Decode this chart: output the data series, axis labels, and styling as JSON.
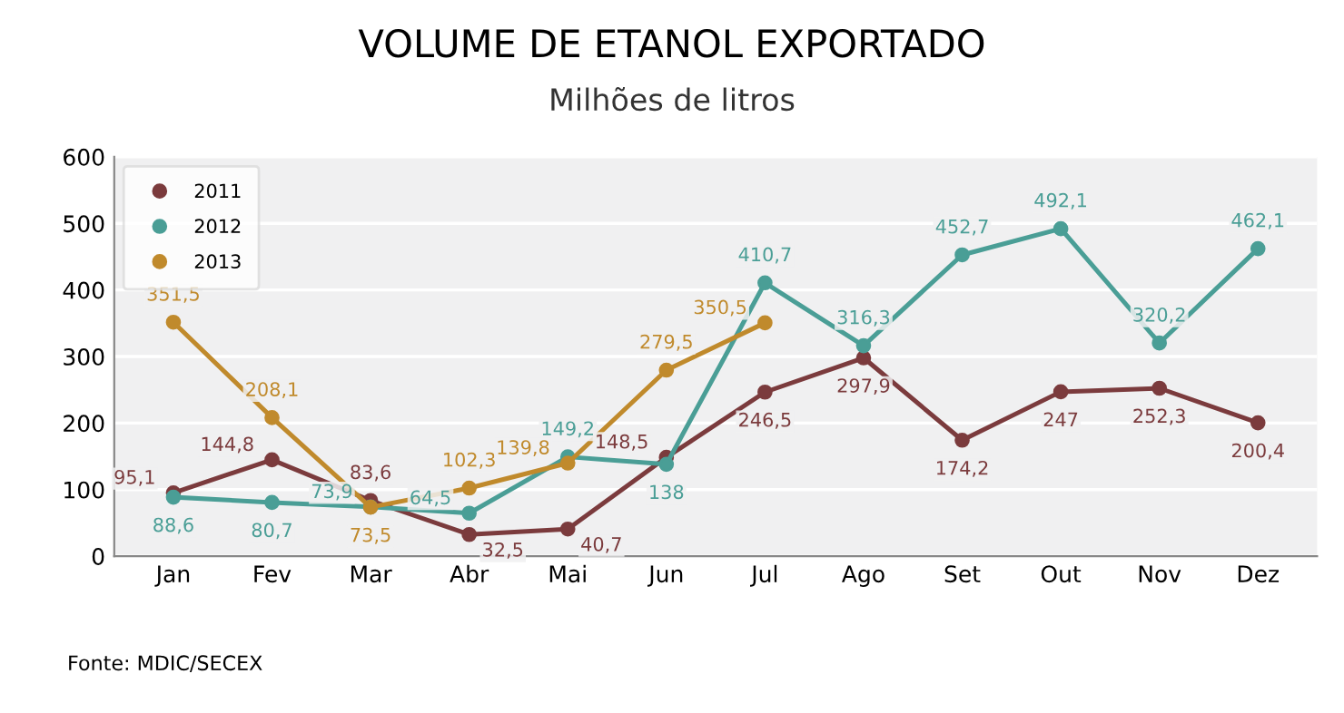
{
  "chart_data": {
    "type": "line",
    "title": "VOLUME DE ETANOL EXPORTADO",
    "subtitle": "Milhões de litros",
    "categories": [
      "Jan",
      "Fev",
      "Mar",
      "Abr",
      "Mai",
      "Jun",
      "Jul",
      "Ago",
      "Set",
      "Out",
      "Nov",
      "Dez"
    ],
    "series": [
      {
        "name": "2011",
        "color": "#7b3b3d",
        "values": [
          95.1,
          144.8,
          83.6,
          32.5,
          40.7,
          148.5,
          246.5,
          297.9,
          174.2,
          247,
          252.3,
          200.4
        ],
        "value_labels": [
          "95,1",
          "144,8",
          "83,6",
          "32,5",
          "40,7",
          "148,5",
          "246,5",
          "297,9",
          "174,2",
          "247",
          "252,3",
          "200,4"
        ]
      },
      {
        "name": "2012",
        "color": "#4a9e96",
        "values": [
          88.6,
          80.7,
          73.9,
          64.5,
          149.2,
          138,
          410.7,
          316.3,
          452.7,
          492.1,
          320.2,
          462.1
        ],
        "value_labels": [
          "88,6",
          "80,7",
          "73,9",
          "64,5",
          "149,2",
          "138",
          "410,7",
          "316,3",
          "452,7",
          "492,1",
          "320,2",
          "462,1"
        ]
      },
      {
        "name": "2013",
        "color": "#c08a2c",
        "values": [
          351.5,
          208.1,
          73.5,
          102.3,
          139.8,
          279.5,
          350.5,
          null,
          null,
          null,
          null,
          null
        ],
        "value_labels": [
          "351,5",
          "208,1",
          "73,5",
          "102,3",
          "139,8",
          "279,5",
          "350,5",
          null,
          null,
          null,
          null,
          null
        ]
      }
    ],
    "ylim": [
      0,
      600
    ],
    "yticks": [
      0,
      100,
      200,
      300,
      400,
      500,
      600
    ],
    "grid": "y",
    "legend": "top left",
    "marker": "circle",
    "line_style": "solid",
    "annotations": [
      "Fonte: MDIC/SECEX"
    ]
  }
}
